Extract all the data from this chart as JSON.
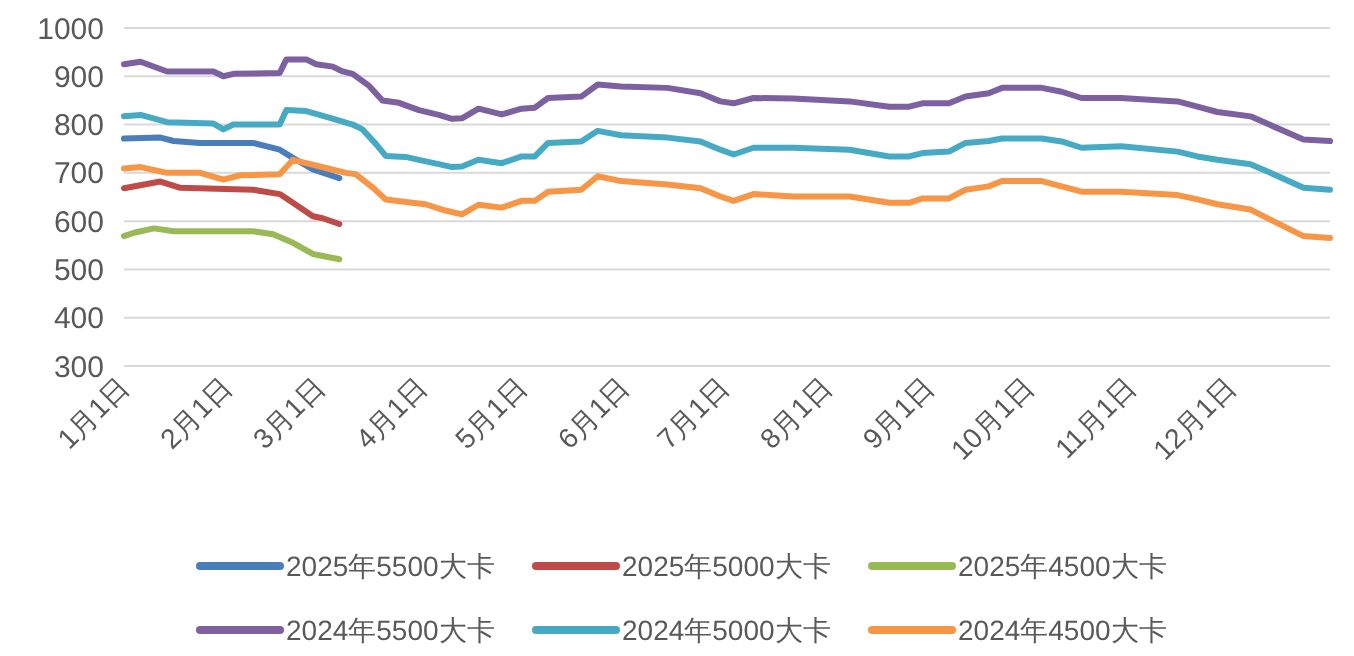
{
  "chart_data": {
    "type": "line",
    "xlim": [
      "--01-01",
      "--12-31"
    ],
    "xticks": [
      {
        "value": "--01-01",
        "label": "1月1日"
      },
      {
        "value": "--02-01",
        "label": "2月1日"
      },
      {
        "value": "--03-01",
        "label": "3月1日"
      },
      {
        "value": "--04-01",
        "label": "4月1日"
      },
      {
        "value": "--05-01",
        "label": "5月1日"
      },
      {
        "value": "--06-01",
        "label": "6月1日"
      },
      {
        "value": "--07-01",
        "label": "7月1日"
      },
      {
        "value": "--08-01",
        "label": "8月1日"
      },
      {
        "value": "--09-01",
        "label": "9月1日"
      },
      {
        "value": "--10-01",
        "label": "10月1日"
      },
      {
        "value": "--11-01",
        "label": "11月1日"
      },
      {
        "value": "--12-01",
        "label": "12月1日"
      }
    ],
    "ylim": [
      300,
      1000
    ],
    "yticks": [
      300,
      400,
      500,
      600,
      700,
      800,
      900,
      1000
    ],
    "grid": "y",
    "legend": "bottom",
    "series": [
      {
        "name": "2025年5500大卡",
        "color": "#4a7ebb",
        "x": [
          "--01-01",
          "--01-12",
          "--01-16",
          "--01-24",
          "--02-09",
          "--02-17",
          "--02-21",
          "--02-27",
          "--03-07"
        ],
        "values": [
          771,
          773,
          766,
          762,
          762,
          748,
          731,
          707,
          689
        ]
      },
      {
        "name": "2025年5000大卡",
        "color": "#be4b48",
        "x": [
          "--01-01",
          "--01-12",
          "--01-18",
          "--02-09",
          "--02-17",
          "--02-21",
          "--02-27",
          "--03-02",
          "--03-07"
        ],
        "values": [
          668,
          682,
          669,
          665,
          656,
          638,
          610,
          606,
          594
        ]
      },
      {
        "name": "2025年4500大卡",
        "color": "#98b954",
        "x": [
          "--01-01",
          "--01-04",
          "--01-10",
          "--01-16",
          "--02-09",
          "--02-15",
          "--02-21",
          "--02-27",
          "--03-07"
        ],
        "values": [
          569,
          576,
          585,
          579,
          579,
          573,
          555,
          532,
          521
        ]
      },
      {
        "name": "2024年5500大卡",
        "color": "#7d60a0",
        "x": [
          "--01-01",
          "--01-06",
          "--01-14",
          "--01-28",
          "--01-31",
          "--02-03",
          "--02-17",
          "--02-19",
          "--02-25",
          "--02-28",
          "--03-05",
          "--03-08",
          "--03-11",
          "--03-16",
          "--03-20",
          "--03-25",
          "--03-31",
          "--04-06",
          "--04-10",
          "--04-13",
          "--04-18",
          "--04-25",
          "--05-01",
          "--05-05",
          "--05-09",
          "--05-19",
          "--05-24",
          "--05-31",
          "--06-14",
          "--06-24",
          "--06-30",
          "--07-04",
          "--07-10",
          "--07-22",
          "--08-08",
          "--08-20",
          "--08-26",
          "--08-30",
          "--09-07",
          "--09-12",
          "--09-19",
          "--09-23",
          "--10-05",
          "--10-11",
          "--10-17",
          "--10-29",
          "--11-15",
          "--11-21",
          "--11-27",
          "--12-07",
          "--12-13",
          "--12-23",
          "--12-31"
        ],
        "values": [
          925,
          930,
          910,
          910,
          900,
          905,
          907,
          935,
          935,
          925,
          920,
          910,
          905,
          880,
          850,
          845,
          830,
          820,
          812,
          813,
          833,
          821,
          833,
          835,
          855,
          858,
          883,
          879,
          876,
          865,
          848,
          844,
          855,
          854,
          848,
          837,
          837,
          844,
          844,
          858,
          865,
          876,
          876,
          868,
          855,
          855,
          848,
          837,
          826,
          817,
          799,
          769,
          766
        ]
      },
      {
        "name": "2024年5000大卡",
        "color": "#46aac5",
        "x": [
          "--01-01",
          "--01-06",
          "--01-14",
          "--01-28",
          "--01-31",
          "--02-03",
          "--02-17",
          "--02-19",
          "--02-25",
          "--03-01",
          "--03-07",
          "--03-11",
          "--03-14",
          "--03-18",
          "--03-21",
          "--03-27",
          "--03-31",
          "--04-06",
          "--04-10",
          "--04-13",
          "--04-18",
          "--04-25",
          "--05-01",
          "--05-05",
          "--05-09",
          "--05-19",
          "--05-24",
          "--05-31",
          "--06-14",
          "--06-24",
          "--06-30",
          "--07-04",
          "--07-10",
          "--07-22",
          "--08-08",
          "--08-20",
          "--08-26",
          "--08-30",
          "--09-07",
          "--09-12",
          "--09-19",
          "--09-23",
          "--10-05",
          "--10-11",
          "--10-17",
          "--10-29",
          "--11-15",
          "--11-21",
          "--11-27",
          "--12-07",
          "--12-13",
          "--12-23",
          "--12-31"
        ],
        "values": [
          817,
          820,
          805,
          802,
          790,
          800,
          800,
          830,
          828,
          820,
          808,
          800,
          790,
          760,
          735,
          733,
          727,
          718,
          712,
          713,
          727,
          720,
          734,
          734,
          762,
          765,
          787,
          778,
          773,
          765,
          748,
          738,
          752,
          752,
          748,
          734,
          734,
          741,
          744,
          762,
          766,
          771,
          771,
          765,
          752,
          755,
          744,
          734,
          727,
          718,
          700,
          669,
          665
        ]
      },
      {
        "name": "2024年4500大卡",
        "color": "#f79646",
        "x": [
          "--01-01",
          "--01-06",
          "--01-14",
          "--01-24",
          "--01-31",
          "--02-05",
          "--02-17",
          "--02-21",
          "--02-25",
          "--03-03",
          "--03-09",
          "--03-12",
          "--03-17",
          "--03-21",
          "--03-29",
          "--04-02",
          "--04-08",
          "--04-13",
          "--04-18",
          "--04-25",
          "--05-01",
          "--05-05",
          "--05-09",
          "--05-19",
          "--05-24",
          "--05-31",
          "--06-14",
          "--06-24",
          "--06-30",
          "--07-04",
          "--07-10",
          "--07-22",
          "--08-08",
          "--08-20",
          "--08-26",
          "--08-30",
          "--09-07",
          "--09-12",
          "--09-19",
          "--09-23",
          "--10-05",
          "--10-11",
          "--10-17",
          "--10-29",
          "--11-15",
          "--11-21",
          "--11-27",
          "--12-07",
          "--12-13",
          "--12-23",
          "--12-31"
        ],
        "values": [
          709,
          712,
          700,
          700,
          686,
          695,
          697,
          727,
          720,
          710,
          700,
          697,
          670,
          645,
          638,
          635,
          622,
          614,
          634,
          628,
          642,
          642,
          661,
          665,
          693,
          683,
          676,
          668,
          651,
          642,
          656,
          651,
          651,
          638,
          638,
          647,
          647,
          665,
          672,
          683,
          683,
          672,
          661,
          661,
          654,
          645,
          635,
          624,
          603,
          569,
          565
        ]
      }
    ]
  }
}
